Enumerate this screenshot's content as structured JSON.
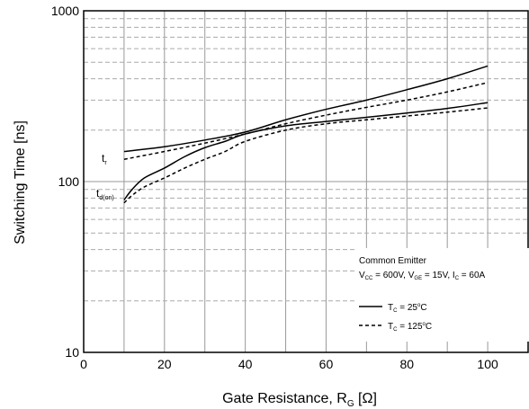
{
  "chart_data": {
    "type": "line",
    "xlabel": "Gate Resistance, R",
    "xlabel_sub": "G",
    "xlabel_unit": " [Ω]",
    "ylabel": "Switching Time [ns]",
    "xlim": [
      0,
      110
    ],
    "ylim": [
      10,
      1000
    ],
    "yscale": "log",
    "grid": true,
    "x_ticks": [
      0,
      20,
      40,
      60,
      80,
      100
    ],
    "y_ticks": [
      10,
      100,
      1000
    ],
    "series": [
      {
        "name": "t_r, T_C = 25°C",
        "style": "solid",
        "x": [
          10,
          20,
          30,
          40,
          50,
          60,
          70,
          80,
          90,
          100
        ],
        "y": [
          150,
          160,
          175,
          195,
          230,
          265,
          300,
          345,
          400,
          475
        ]
      },
      {
        "name": "t_r, T_C = 125°C",
        "style": "dashed",
        "x": [
          10,
          20,
          30,
          40,
          50,
          60,
          70,
          80,
          90,
          100
        ],
        "y": [
          135,
          150,
          168,
          190,
          218,
          245,
          272,
          300,
          335,
          380
        ]
      },
      {
        "name": "t_d(on), T_C = 25°C",
        "style": "solid",
        "x": [
          10,
          12,
          15,
          20,
          25,
          30,
          35,
          40,
          50,
          60,
          70,
          80,
          90,
          100
        ],
        "y": [
          78,
          90,
          105,
          120,
          140,
          158,
          172,
          190,
          212,
          225,
          238,
          252,
          268,
          290
        ]
      },
      {
        "name": "t_d(on), T_C = 125°C",
        "style": "dashed",
        "x": [
          10,
          12,
          15,
          20,
          25,
          30,
          35,
          40,
          50,
          60,
          70,
          80,
          90,
          100
        ],
        "y": [
          75,
          83,
          93,
          105,
          120,
          135,
          150,
          172,
          200,
          218,
          230,
          242,
          255,
          270
        ]
      }
    ],
    "curve_labels": [
      {
        "main": "t",
        "sub": "r"
      },
      {
        "main": "t",
        "sub": "d(on)"
      }
    ],
    "legend": {
      "placement": "bottom-right",
      "title": "Common Emitter",
      "conditions": [
        {
          "main": "V",
          "sub": "CC"
        },
        {
          "main": " = 600V, V",
          "sub": "GE"
        },
        {
          "main": " = 15V, I",
          "sub": "C"
        },
        {
          "main": " = 60A",
          "sub": ""
        }
      ],
      "entries": [
        {
          "style": "solid",
          "pre": "T",
          "sub": "C",
          "post": " = 25",
          "sup": "o",
          "unit": "C"
        },
        {
          "style": "dashed",
          "pre": "T",
          "sub": "C",
          "post": " = 125",
          "sup": "o",
          "unit": "C"
        }
      ]
    }
  }
}
